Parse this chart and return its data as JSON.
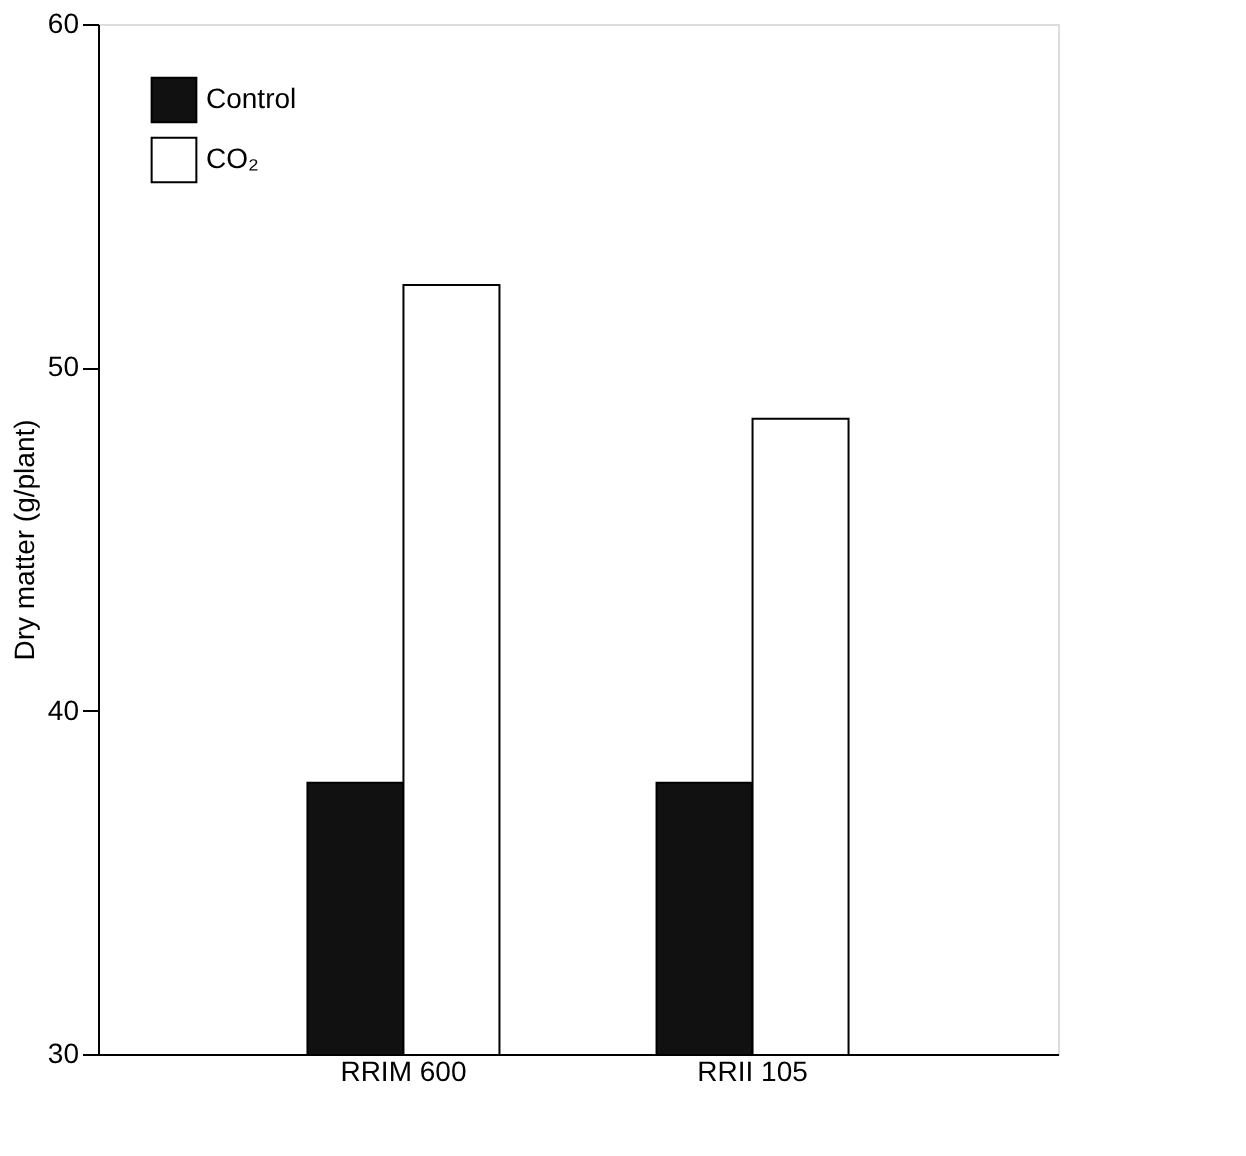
{
  "chart_data": {
    "type": "bar",
    "ylabel": "Dry matter (g/plant)",
    "categories": [
      "RRIM 600",
      "RRII 105"
    ],
    "series": [
      {
        "name": "Control",
        "color": "#111111",
        "values": [
          37.9,
          37.9
        ]
      },
      {
        "name": "CO₂",
        "color": "#ffffff",
        "values": [
          52.4,
          48.5
        ]
      }
    ],
    "ylim": [
      30,
      60
    ],
    "yticks": [
      30,
      40,
      50,
      60
    ],
    "grid": false,
    "legend": "top left"
  }
}
